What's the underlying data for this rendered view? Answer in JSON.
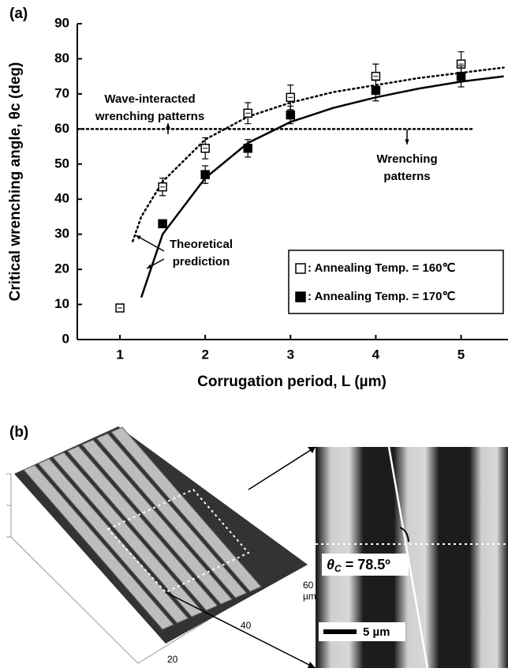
{
  "chart_data": {
    "type": "scatter",
    "panel_label": "(a)",
    "x_label": "Corrugation period, L (µm)",
    "y_label": "Critical wrenching angle, θc (deg)",
    "xlim": [
      0.5,
      5.55
    ],
    "ylim": [
      0,
      90
    ],
    "xticks": [
      1,
      2,
      3,
      4,
      5
    ],
    "yticks": [
      0,
      10,
      20,
      30,
      40,
      50,
      60,
      70,
      80,
      90
    ],
    "series": [
      {
        "name": ": Annealing Temp. = 160℃",
        "marker": "open-square",
        "color": "#000000",
        "x": [
          1,
          1.5,
          2,
          2.5,
          3,
          4,
          5
        ],
        "values": [
          9,
          43.5,
          54.5,
          64.5,
          69,
          75,
          78.5
        ],
        "errors": [
          1,
          2.5,
          3,
          3,
          3.5,
          3.5,
          3.5
        ]
      },
      {
        "name": ": Annealing Temp. = 170℃",
        "marker": "filled-square",
        "color": "#000000",
        "x": [
          1.5,
          2,
          2.5,
          3,
          4,
          5
        ],
        "values": [
          33,
          47,
          54.5,
          64,
          71,
          75
        ],
        "errors": [
          1,
          2.5,
          2.5,
          2.5,
          3,
          3
        ]
      },
      {
        "marker": "dotted-line",
        "color": "#000000",
        "x": [
          1.15,
          1.25,
          1.5,
          2,
          2.5,
          3,
          3.5,
          4,
          4.5,
          5,
          5.5
        ],
        "values": [
          28,
          35,
          45,
          57,
          63.5,
          67.5,
          70.5,
          72.5,
          74.5,
          76,
          77.5
        ]
      },
      {
        "marker": "solid-line",
        "color": "#000000",
        "x": [
          1.25,
          1.5,
          2,
          2.5,
          3,
          3.5,
          4,
          4.5,
          5,
          5.5
        ],
        "values": [
          12,
          30,
          46,
          56,
          62,
          66,
          69,
          71.5,
          73.5,
          75
        ]
      },
      {
        "marker": "dotted-line",
        "color": "#000000",
        "x": [
          0.5,
          5.15
        ],
        "values": [
          60,
          60
        ]
      }
    ],
    "annotations": [
      {
        "lines": [
          "Wave-interacted",
          "wrenching patterns"
        ]
      },
      {
        "lines": [
          "Wrenching",
          "patterns"
        ]
      },
      {
        "lines": [
          "Theoretical",
          "prediction"
        ]
      }
    ]
  },
  "panel_b": {
    "panel_label": "(b)",
    "axis_labels": [
      "60",
      "µm",
      "40",
      "20"
    ],
    "angle_label": "θ",
    "angle_sub": "C",
    "angle_value": " = 78.5º",
    "scale_bar": "5 µm"
  }
}
